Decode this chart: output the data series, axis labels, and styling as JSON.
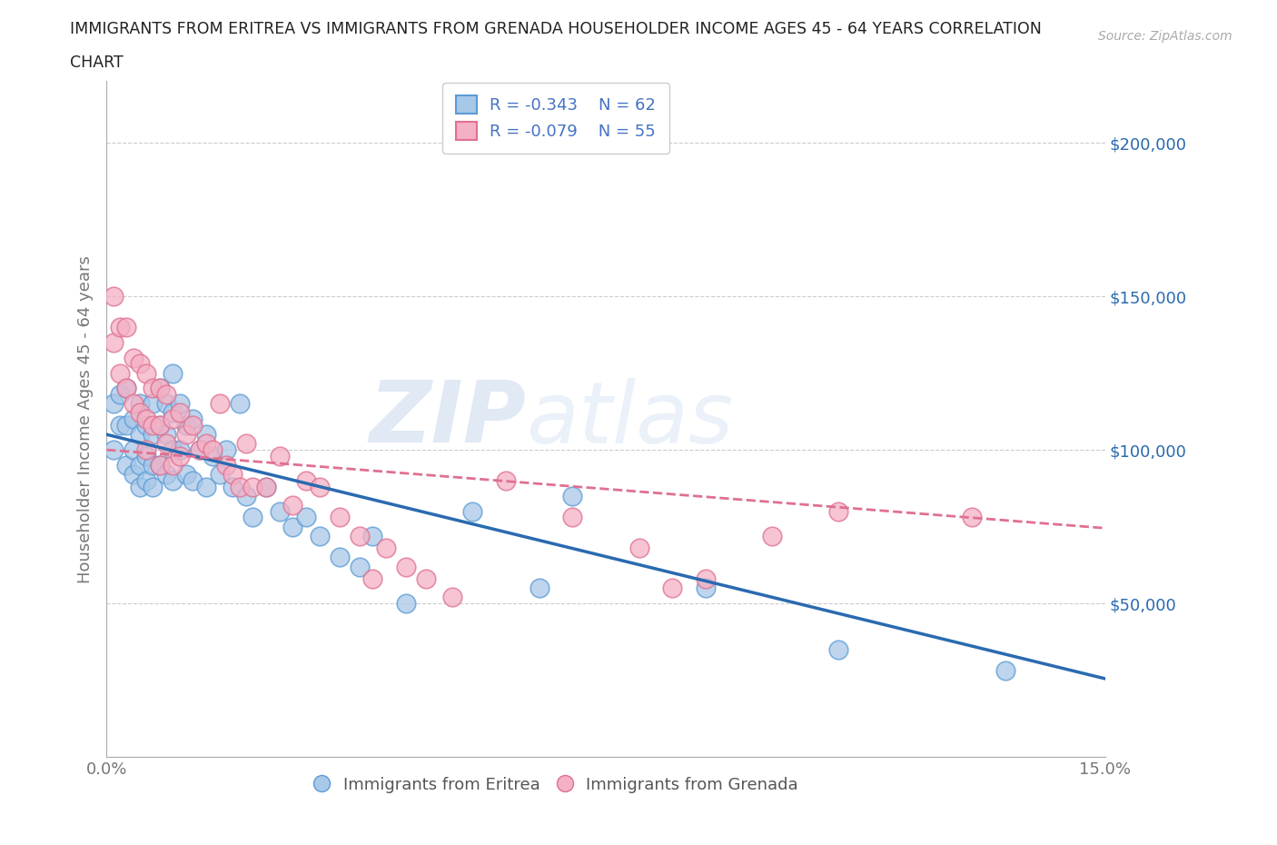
{
  "title_line1": "IMMIGRANTS FROM ERITREA VS IMMIGRANTS FROM GRENADA HOUSEHOLDER INCOME AGES 45 - 64 YEARS CORRELATION",
  "title_line2": "CHART",
  "source": "Source: ZipAtlas.com",
  "ylabel": "Householder Income Ages 45 - 64 years",
  "xlim": [
    0.0,
    0.15
  ],
  "ylim": [
    0,
    220000
  ],
  "yticks": [
    0,
    50000,
    100000,
    150000,
    200000
  ],
  "yticklabels": [
    "",
    "$50,000",
    "$100,000",
    "$150,000",
    "$200,000"
  ],
  "xtick_positions": [
    0.0,
    0.03,
    0.06,
    0.09,
    0.12,
    0.15
  ],
  "xticklabels": [
    "0.0%",
    "",
    "",
    "",
    "",
    "15.0%"
  ],
  "eritrea_color": "#a8c8e8",
  "eritrea_edge_color": "#5b9bd5",
  "grenada_color": "#f4b0c4",
  "grenada_edge_color": "#e07090",
  "eritrea_R": -0.343,
  "eritrea_N": 62,
  "grenada_R": -0.079,
  "grenada_N": 55,
  "eritrea_line_color": "#2a6ab0",
  "grenada_line_color": "#e07090",
  "watermark": "ZIPatlas",
  "grid_color": "#cccccc",
  "background_color": "#ffffff",
  "legend_text_color": "#4472c4",
  "eritrea_line_intercept": 105000,
  "eritrea_line_slope": -530000,
  "grenada_line_intercept": 100000,
  "grenada_line_slope": -170000,
  "eritrea_x": [
    0.001,
    0.001,
    0.002,
    0.002,
    0.003,
    0.003,
    0.003,
    0.004,
    0.004,
    0.004,
    0.005,
    0.005,
    0.005,
    0.005,
    0.006,
    0.006,
    0.006,
    0.007,
    0.007,
    0.007,
    0.007,
    0.008,
    0.008,
    0.008,
    0.009,
    0.009,
    0.009,
    0.01,
    0.01,
    0.01,
    0.01,
    0.011,
    0.011,
    0.012,
    0.012,
    0.013,
    0.013,
    0.014,
    0.015,
    0.015,
    0.016,
    0.017,
    0.018,
    0.019,
    0.02,
    0.021,
    0.022,
    0.024,
    0.026,
    0.028,
    0.03,
    0.032,
    0.035,
    0.038,
    0.04,
    0.045,
    0.055,
    0.065,
    0.07,
    0.09,
    0.11,
    0.135
  ],
  "eritrea_y": [
    100000,
    115000,
    108000,
    118000,
    95000,
    108000,
    120000,
    100000,
    110000,
    92000,
    105000,
    95000,
    88000,
    115000,
    108000,
    98000,
    90000,
    115000,
    105000,
    95000,
    88000,
    120000,
    108000,
    95000,
    115000,
    105000,
    92000,
    125000,
    112000,
    100000,
    90000,
    115000,
    100000,
    108000,
    92000,
    110000,
    90000,
    100000,
    105000,
    88000,
    98000,
    92000,
    100000,
    88000,
    115000,
    85000,
    78000,
    88000,
    80000,
    75000,
    78000,
    72000,
    65000,
    62000,
    72000,
    50000,
    80000,
    55000,
    85000,
    55000,
    35000,
    28000
  ],
  "grenada_x": [
    0.001,
    0.001,
    0.002,
    0.002,
    0.003,
    0.003,
    0.004,
    0.004,
    0.005,
    0.005,
    0.006,
    0.006,
    0.006,
    0.007,
    0.007,
    0.008,
    0.008,
    0.008,
    0.009,
    0.009,
    0.01,
    0.01,
    0.011,
    0.011,
    0.012,
    0.013,
    0.014,
    0.015,
    0.016,
    0.017,
    0.018,
    0.019,
    0.02,
    0.021,
    0.022,
    0.024,
    0.026,
    0.028,
    0.03,
    0.032,
    0.035,
    0.038,
    0.04,
    0.042,
    0.045,
    0.048,
    0.052,
    0.06,
    0.07,
    0.08,
    0.085,
    0.09,
    0.1,
    0.11,
    0.13
  ],
  "grenada_y": [
    135000,
    150000,
    140000,
    125000,
    140000,
    120000,
    130000,
    115000,
    128000,
    112000,
    125000,
    110000,
    100000,
    120000,
    108000,
    120000,
    108000,
    95000,
    118000,
    102000,
    110000,
    95000,
    112000,
    98000,
    105000,
    108000,
    100000,
    102000,
    100000,
    115000,
    95000,
    92000,
    88000,
    102000,
    88000,
    88000,
    98000,
    82000,
    90000,
    88000,
    78000,
    72000,
    58000,
    68000,
    62000,
    58000,
    52000,
    90000,
    78000,
    68000,
    55000,
    58000,
    72000,
    80000,
    78000
  ]
}
